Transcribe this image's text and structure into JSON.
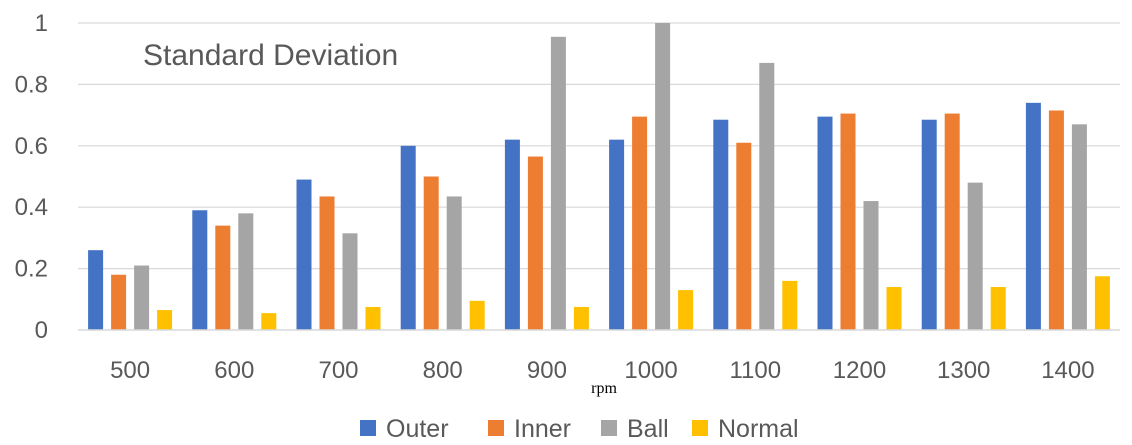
{
  "chart_data": {
    "type": "bar",
    "title": "Standard Deviation",
    "xlabel": "rpm",
    "ylabel": "",
    "categories": [
      "500",
      "600",
      "700",
      "800",
      "900",
      "1000",
      "1100",
      "1200",
      "1300",
      "1400"
    ],
    "series": [
      {
        "name": "Outer",
        "color": "#4472C4",
        "values": [
          0.26,
          0.39,
          0.49,
          0.6,
          0.62,
          0.62,
          0.685,
          0.695,
          0.685,
          0.74
        ]
      },
      {
        "name": "Inner",
        "color": "#ED7D31",
        "values": [
          0.18,
          0.34,
          0.435,
          0.5,
          0.565,
          0.695,
          0.61,
          0.705,
          0.705,
          0.715
        ]
      },
      {
        "name": "Ball",
        "color": "#A5A5A5",
        "values": [
          0.21,
          0.38,
          0.315,
          0.435,
          0.955,
          1.0,
          0.87,
          0.42,
          0.48,
          0.67
        ]
      },
      {
        "name": "Normal",
        "color": "#FFC000",
        "values": [
          0.065,
          0.055,
          0.075,
          0.095,
          0.075,
          0.13,
          0.16,
          0.14,
          0.14,
          0.175
        ]
      }
    ],
    "ylim": [
      0,
      1
    ],
    "yticks": [
      "0",
      "0.2",
      "0.4",
      "0.6",
      "0.8",
      "1"
    ],
    "grid": true,
    "legend_position": "bottom"
  }
}
